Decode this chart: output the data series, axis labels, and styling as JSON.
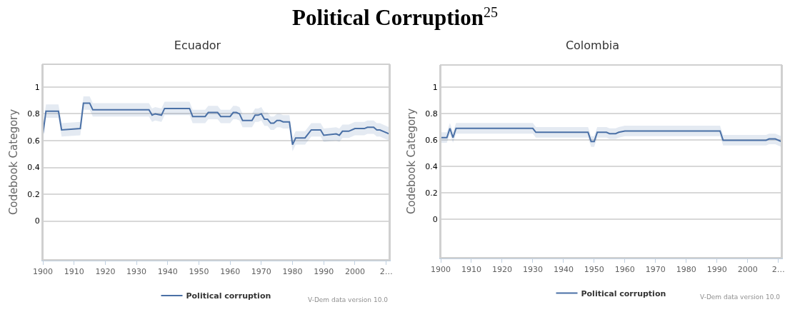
{
  "chart_data": [
    {
      "type": "line",
      "title": "Ecuador",
      "ylabel": "Codebook Category",
      "annotations": [
        "Political Corruption$^{25}$",
        "V-Dem data version 10.0"
      ],
      "legend": "bottom",
      "grid": "y",
      "marker": "none",
      "line_style": "solid",
      "xlim": [
        1900,
        2011
      ],
      "xticks": [
        1900,
        1910,
        1920,
        1930,
        1940,
        1950,
        1960,
        1970,
        1980,
        1990,
        2000,
        {
          "value": 2010,
          "label": "2…"
        }
      ],
      "ylim": [
        -0.29,
        1.17
      ],
      "yticks": [
        0,
        0.2,
        0.4,
        0.6,
        0.8,
        1
      ],
      "series": [
        {
          "name": "Political corruption",
          "color": "#4a70a6",
          "x": [
            1900,
            1901,
            1905,
            1906,
            1912,
            1913,
            1915,
            1916,
            1934,
            1935,
            1936,
            1938,
            1939,
            1947,
            1948,
            1952,
            1953,
            1956,
            1957,
            1960,
            1961,
            1962,
            1963,
            1964,
            1967,
            1968,
            1969,
            1970,
            1971,
            1972,
            1973,
            1974,
            1975,
            1976,
            1977,
            1979,
            1980,
            1981,
            1984,
            1986,
            1989,
            1990,
            1994,
            1995,
            1996,
            1998,
            2000,
            2001,
            2003,
            2004,
            2005,
            2006,
            2007,
            2008,
            2009,
            2011
          ],
          "values": [
            0.65,
            0.82,
            0.82,
            0.68,
            0.69,
            0.88,
            0.88,
            0.83,
            0.83,
            0.79,
            0.8,
            0.79,
            0.84,
            0.84,
            0.78,
            0.78,
            0.81,
            0.81,
            0.78,
            0.78,
            0.81,
            0.81,
            0.8,
            0.75,
            0.75,
            0.79,
            0.79,
            0.8,
            0.76,
            0.76,
            0.73,
            0.73,
            0.75,
            0.75,
            0.74,
            0.74,
            0.57,
            0.62,
            0.62,
            0.68,
            0.68,
            0.64,
            0.65,
            0.64,
            0.67,
            0.67,
            0.69,
            0.69,
            0.69,
            0.7,
            0.7,
            0.7,
            0.68,
            0.68,
            0.67,
            0.65
          ],
          "upper": [
            0.7,
            0.87,
            0.87,
            0.73,
            0.74,
            0.93,
            0.93,
            0.88,
            0.88,
            0.84,
            0.85,
            0.84,
            0.89,
            0.89,
            0.83,
            0.83,
            0.86,
            0.86,
            0.83,
            0.83,
            0.86,
            0.86,
            0.85,
            0.8,
            0.8,
            0.84,
            0.84,
            0.85,
            0.81,
            0.81,
            0.78,
            0.78,
            0.8,
            0.8,
            0.79,
            0.79,
            0.62,
            0.67,
            0.67,
            0.73,
            0.73,
            0.69,
            0.7,
            0.69,
            0.72,
            0.72,
            0.74,
            0.74,
            0.74,
            0.75,
            0.75,
            0.75,
            0.73,
            0.73,
            0.72,
            0.7
          ],
          "lower": [
            0.6,
            0.77,
            0.77,
            0.63,
            0.64,
            0.83,
            0.83,
            0.78,
            0.78,
            0.74,
            0.75,
            0.74,
            0.79,
            0.79,
            0.73,
            0.73,
            0.76,
            0.76,
            0.73,
            0.73,
            0.76,
            0.76,
            0.75,
            0.7,
            0.7,
            0.74,
            0.74,
            0.75,
            0.71,
            0.71,
            0.68,
            0.68,
            0.7,
            0.7,
            0.69,
            0.69,
            0.52,
            0.57,
            0.57,
            0.63,
            0.63,
            0.59,
            0.6,
            0.59,
            0.62,
            0.62,
            0.64,
            0.64,
            0.64,
            0.65,
            0.65,
            0.65,
            0.63,
            0.63,
            0.62,
            0.6
          ]
        }
      ]
    },
    {
      "type": "line",
      "title": "Colombia",
      "ylabel": "Codebook Category",
      "annotations": [
        "V-Dem data version 10.0"
      ],
      "legend": "bottom",
      "grid": "y",
      "marker": "none",
      "line_style": "solid",
      "xlim": [
        1900,
        2011
      ],
      "xticks": [
        1900,
        1910,
        1920,
        1930,
        1940,
        1950,
        1960,
        1970,
        1980,
        1990,
        2000,
        {
          "value": 2010,
          "label": "2…"
        }
      ],
      "ylim": [
        -0.29,
        1.17
      ],
      "yticks": [
        0,
        0.2,
        0.4,
        0.6,
        0.8,
        1
      ],
      "series": [
        {
          "name": "Political corruption",
          "color": "#4a70a6",
          "x": [
            1900,
            1902,
            1903,
            1904,
            1905,
            1930,
            1931,
            1948,
            1949,
            1950,
            1951,
            1954,
            1955,
            1957,
            1958,
            1960,
            1978,
            1979,
            1991,
            1992,
            2006,
            2007,
            2009,
            2011
          ],
          "values": [
            0.62,
            0.62,
            0.69,
            0.62,
            0.69,
            0.69,
            0.66,
            0.66,
            0.59,
            0.59,
            0.66,
            0.66,
            0.65,
            0.65,
            0.66,
            0.67,
            0.67,
            0.67,
            0.67,
            0.6,
            0.6,
            0.61,
            0.61,
            0.59
          ],
          "upper": [
            0.66,
            0.66,
            0.73,
            0.66,
            0.73,
            0.73,
            0.7,
            0.7,
            0.63,
            0.63,
            0.7,
            0.7,
            0.69,
            0.69,
            0.7,
            0.71,
            0.71,
            0.71,
            0.71,
            0.64,
            0.64,
            0.65,
            0.65,
            0.63
          ],
          "lower": [
            0.58,
            0.58,
            0.65,
            0.58,
            0.65,
            0.65,
            0.62,
            0.62,
            0.55,
            0.55,
            0.62,
            0.62,
            0.61,
            0.61,
            0.62,
            0.63,
            0.63,
            0.63,
            0.63,
            0.56,
            0.56,
            0.57,
            0.57,
            0.55
          ]
        }
      ]
    }
  ]
}
